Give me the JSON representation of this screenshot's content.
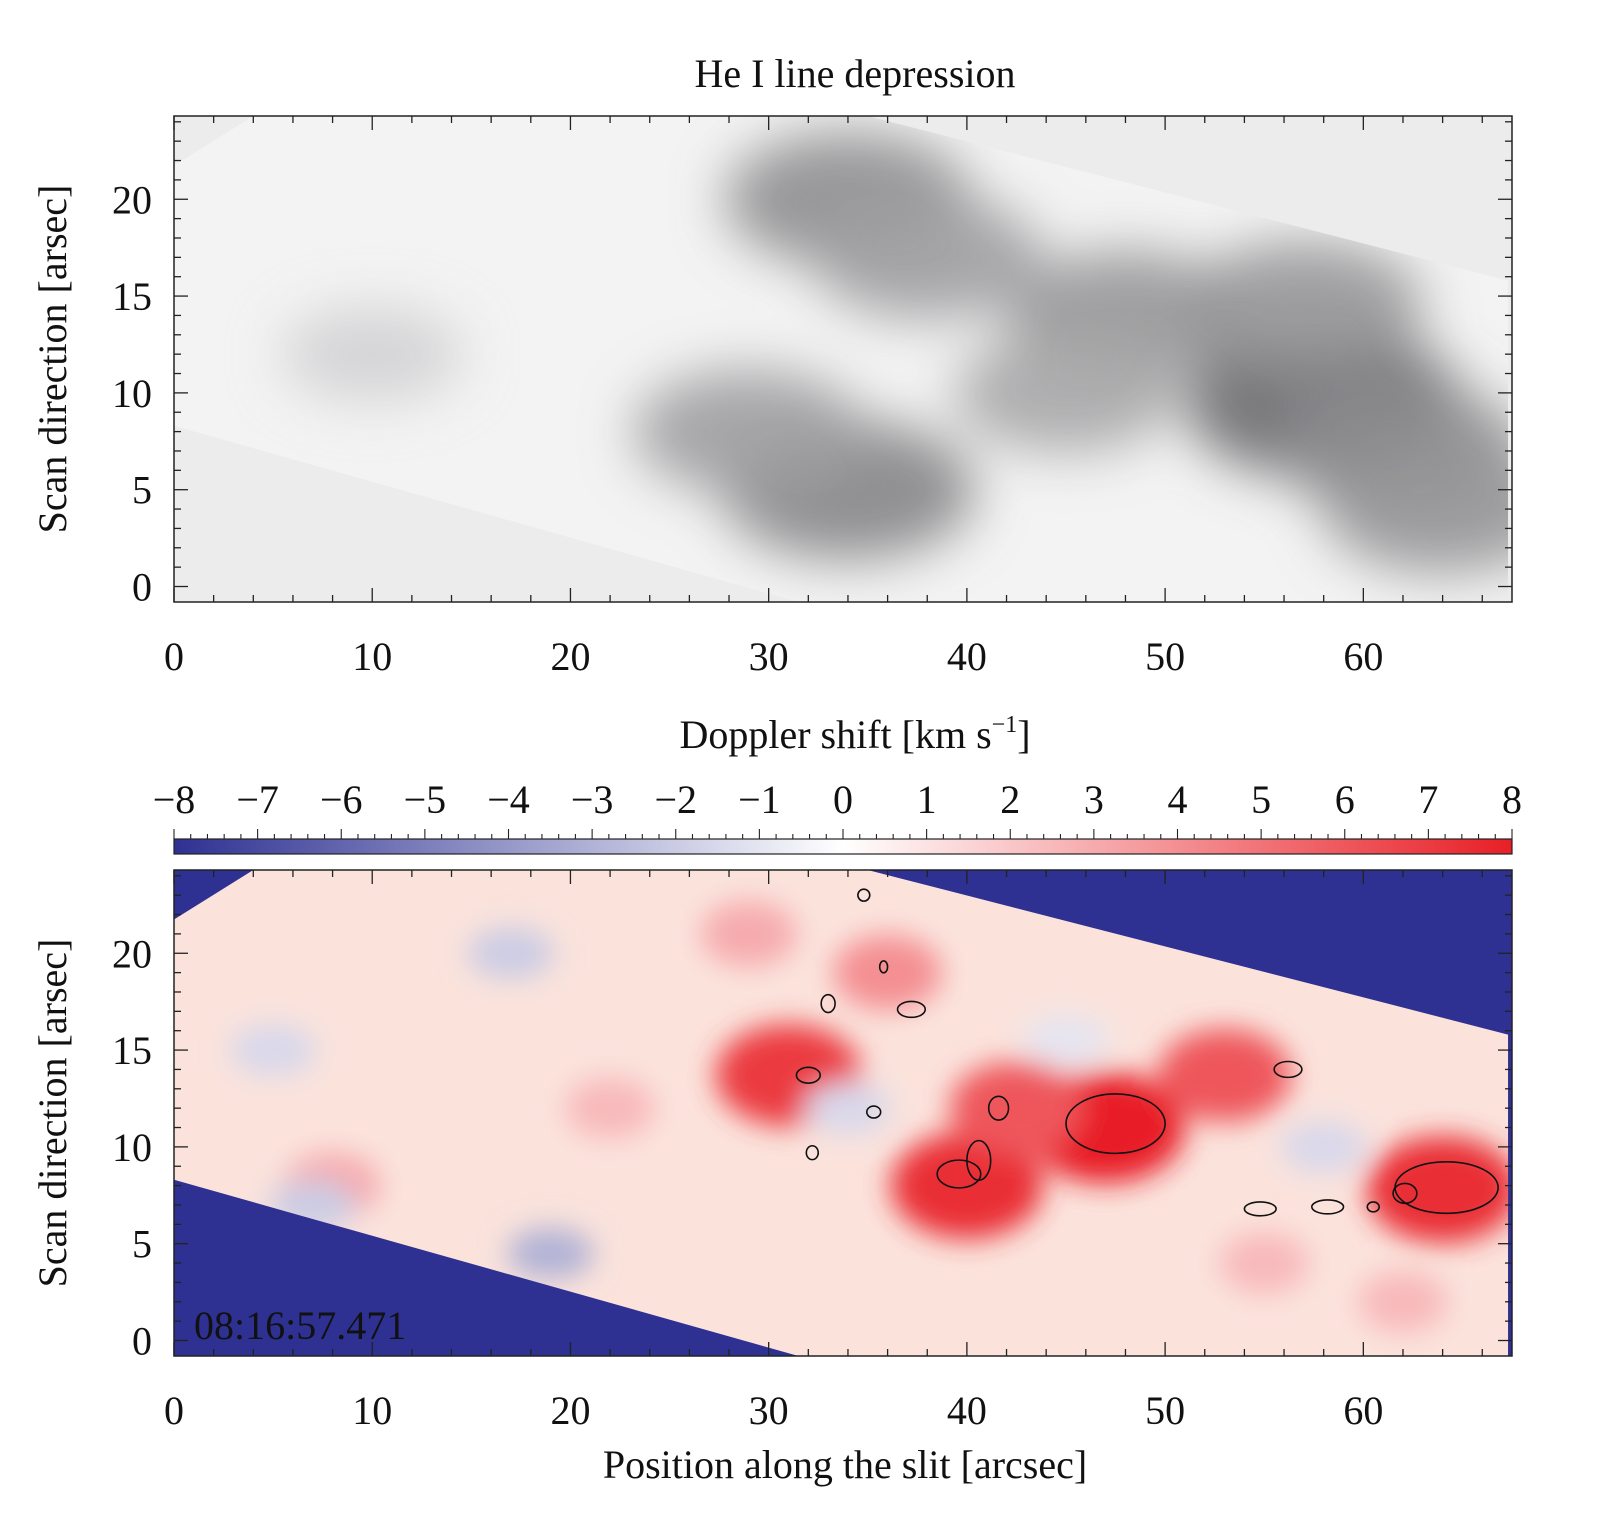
{
  "chart_data": [
    {
      "type": "heatmap",
      "title": "He I line depression",
      "xlabel": "",
      "ylabel": "Scan direction   [arsec]",
      "xlim": [
        0,
        67.5
      ],
      "ylim": [
        -0.8,
        24.3
      ],
      "xticks": [
        0,
        10,
        20,
        30,
        40,
        50,
        60
      ],
      "yticks": [
        0,
        5,
        10,
        15,
        20
      ],
      "colormap": "grayscale",
      "scan_region": {
        "upper_edge": [
          [
            4,
            24.3
          ],
          [
            35,
            24.3
          ],
          [
            67.3,
            15.8
          ]
        ],
        "lower_edge": [
          [
            0,
            8.3
          ],
          [
            31.5,
            -0.8
          ]
        ],
        "note": "tilted rectangular scan footprint; outside is uniform light gray"
      },
      "dark_features": [
        {
          "x": 34,
          "y": 20,
          "strength": 0.55
        },
        {
          "x": 38,
          "y": 17,
          "strength": 0.45
        },
        {
          "x": 48,
          "y": 14,
          "strength": 0.5
        },
        {
          "x": 58,
          "y": 9.5,
          "strength": 0.75
        },
        {
          "x": 62,
          "y": 7,
          "strength": 0.55
        },
        {
          "x": 34,
          "y": 5,
          "strength": 0.6
        },
        {
          "x": 29,
          "y": 8,
          "strength": 0.45
        },
        {
          "x": 45,
          "y": 10,
          "strength": 0.4
        },
        {
          "x": 57,
          "y": 14.5,
          "strength": 0.5
        },
        {
          "x": 64,
          "y": 4,
          "strength": 0.5
        },
        {
          "x": 10,
          "y": 12,
          "strength": 0.15
        }
      ]
    },
    {
      "type": "heatmap",
      "title": "Doppler shift",
      "xlabel": "Position along the slit   [arcsec]",
      "ylabel": "Scan direction   [arsec]",
      "xlim": [
        0,
        67.5
      ],
      "ylim": [
        -0.8,
        24.3
      ],
      "xticks": [
        0,
        10,
        20,
        30,
        40,
        50,
        60
      ],
      "yticks": [
        0,
        5,
        10,
        15,
        20
      ],
      "colormap": "blue-white-red",
      "colorbar": {
        "label_main": "Doppler shift   [km s",
        "label_exp": "−1",
        "label_close": "]",
        "range": [
          -8,
          8
        ],
        "ticks": [
          "−8",
          "−7",
          "−6",
          "−5",
          "−4",
          "−3",
          "−2",
          "−1",
          "0",
          "1",
          "2",
          "3",
          "4",
          "5",
          "6",
          "7",
          "8"
        ],
        "colors": {
          "min": "#2e3192",
          "mid": "#ffffff",
          "max": "#e81f26"
        }
      },
      "fill_color_outside": "#2e3192",
      "scan_region": {
        "upper_edge": [
          [
            4,
            24.3
          ],
          [
            35,
            24.3
          ],
          [
            67.3,
            15.8
          ]
        ],
        "lower_edge": [
          [
            0,
            8.3
          ],
          [
            31.5,
            -0.8
          ]
        ]
      },
      "red_patches": [
        {
          "x": 47,
          "y": 11,
          "value": 8
        },
        {
          "x": 40,
          "y": 8,
          "value": 7.5
        },
        {
          "x": 64,
          "y": 7.8,
          "value": 7.5
        },
        {
          "x": 31,
          "y": 13.7,
          "value": 7
        },
        {
          "x": 53,
          "y": 13.7,
          "value": 6
        },
        {
          "x": 42.5,
          "y": 12,
          "value": 6
        },
        {
          "x": 36,
          "y": 19,
          "value": 4
        },
        {
          "x": 29,
          "y": 21,
          "value": 3
        },
        {
          "x": 8,
          "y": 8,
          "value": 3
        },
        {
          "x": 22,
          "y": 12,
          "value": 2.5
        },
        {
          "x": 55,
          "y": 4,
          "value": 2.5
        },
        {
          "x": 62,
          "y": 2,
          "value": 2.5
        }
      ],
      "blue_patches": [
        {
          "x": 19,
          "y": 4.5,
          "value": -3
        },
        {
          "x": 7,
          "y": 7,
          "value": -2
        },
        {
          "x": 17,
          "y": 20,
          "value": -2
        },
        {
          "x": 5,
          "y": 15,
          "value": -1.5
        },
        {
          "x": 58,
          "y": 10,
          "value": -1.5
        },
        {
          "x": 34,
          "y": 12,
          "value": -1.5
        },
        {
          "x": 45,
          "y": 15.5,
          "value": -1
        }
      ],
      "contours": [
        {
          "x": 47.5,
          "y": 11.2,
          "rx": 2.5,
          "ry": 1.5
        },
        {
          "x": 64.2,
          "y": 7.9,
          "rx": 2.6,
          "ry": 1.3
        },
        {
          "x": 39.6,
          "y": 8.6,
          "rx": 1.1,
          "ry": 0.7
        },
        {
          "x": 40.6,
          "y": 9.3,
          "rx": 0.6,
          "ry": 1.0
        },
        {
          "x": 32.0,
          "y": 13.7,
          "rx": 0.6,
          "ry": 0.4
        },
        {
          "x": 41.6,
          "y": 12.0,
          "rx": 0.5,
          "ry": 0.6
        },
        {
          "x": 33.0,
          "y": 17.4,
          "rx": 0.35,
          "ry": 0.45
        },
        {
          "x": 37.2,
          "y": 17.1,
          "rx": 0.7,
          "ry": 0.4
        },
        {
          "x": 34.8,
          "y": 23.0,
          "rx": 0.3,
          "ry": 0.3
        },
        {
          "x": 35.8,
          "y": 19.3,
          "rx": 0.2,
          "ry": 0.3
        },
        {
          "x": 56.2,
          "y": 14.0,
          "rx": 0.7,
          "ry": 0.4
        },
        {
          "x": 54.8,
          "y": 6.8,
          "rx": 0.8,
          "ry": 0.35
        },
        {
          "x": 58.2,
          "y": 6.9,
          "rx": 0.8,
          "ry": 0.35
        },
        {
          "x": 62.1,
          "y": 7.6,
          "rx": 0.6,
          "ry": 0.5
        },
        {
          "x": 60.5,
          "y": 6.9,
          "rx": 0.3,
          "ry": 0.25
        },
        {
          "x": 35.3,
          "y": 11.8,
          "rx": 0.35,
          "ry": 0.3
        },
        {
          "x": 32.2,
          "y": 9.7,
          "rx": 0.3,
          "ry": 0.35
        }
      ],
      "annotation": "08:16:57.471"
    }
  ]
}
